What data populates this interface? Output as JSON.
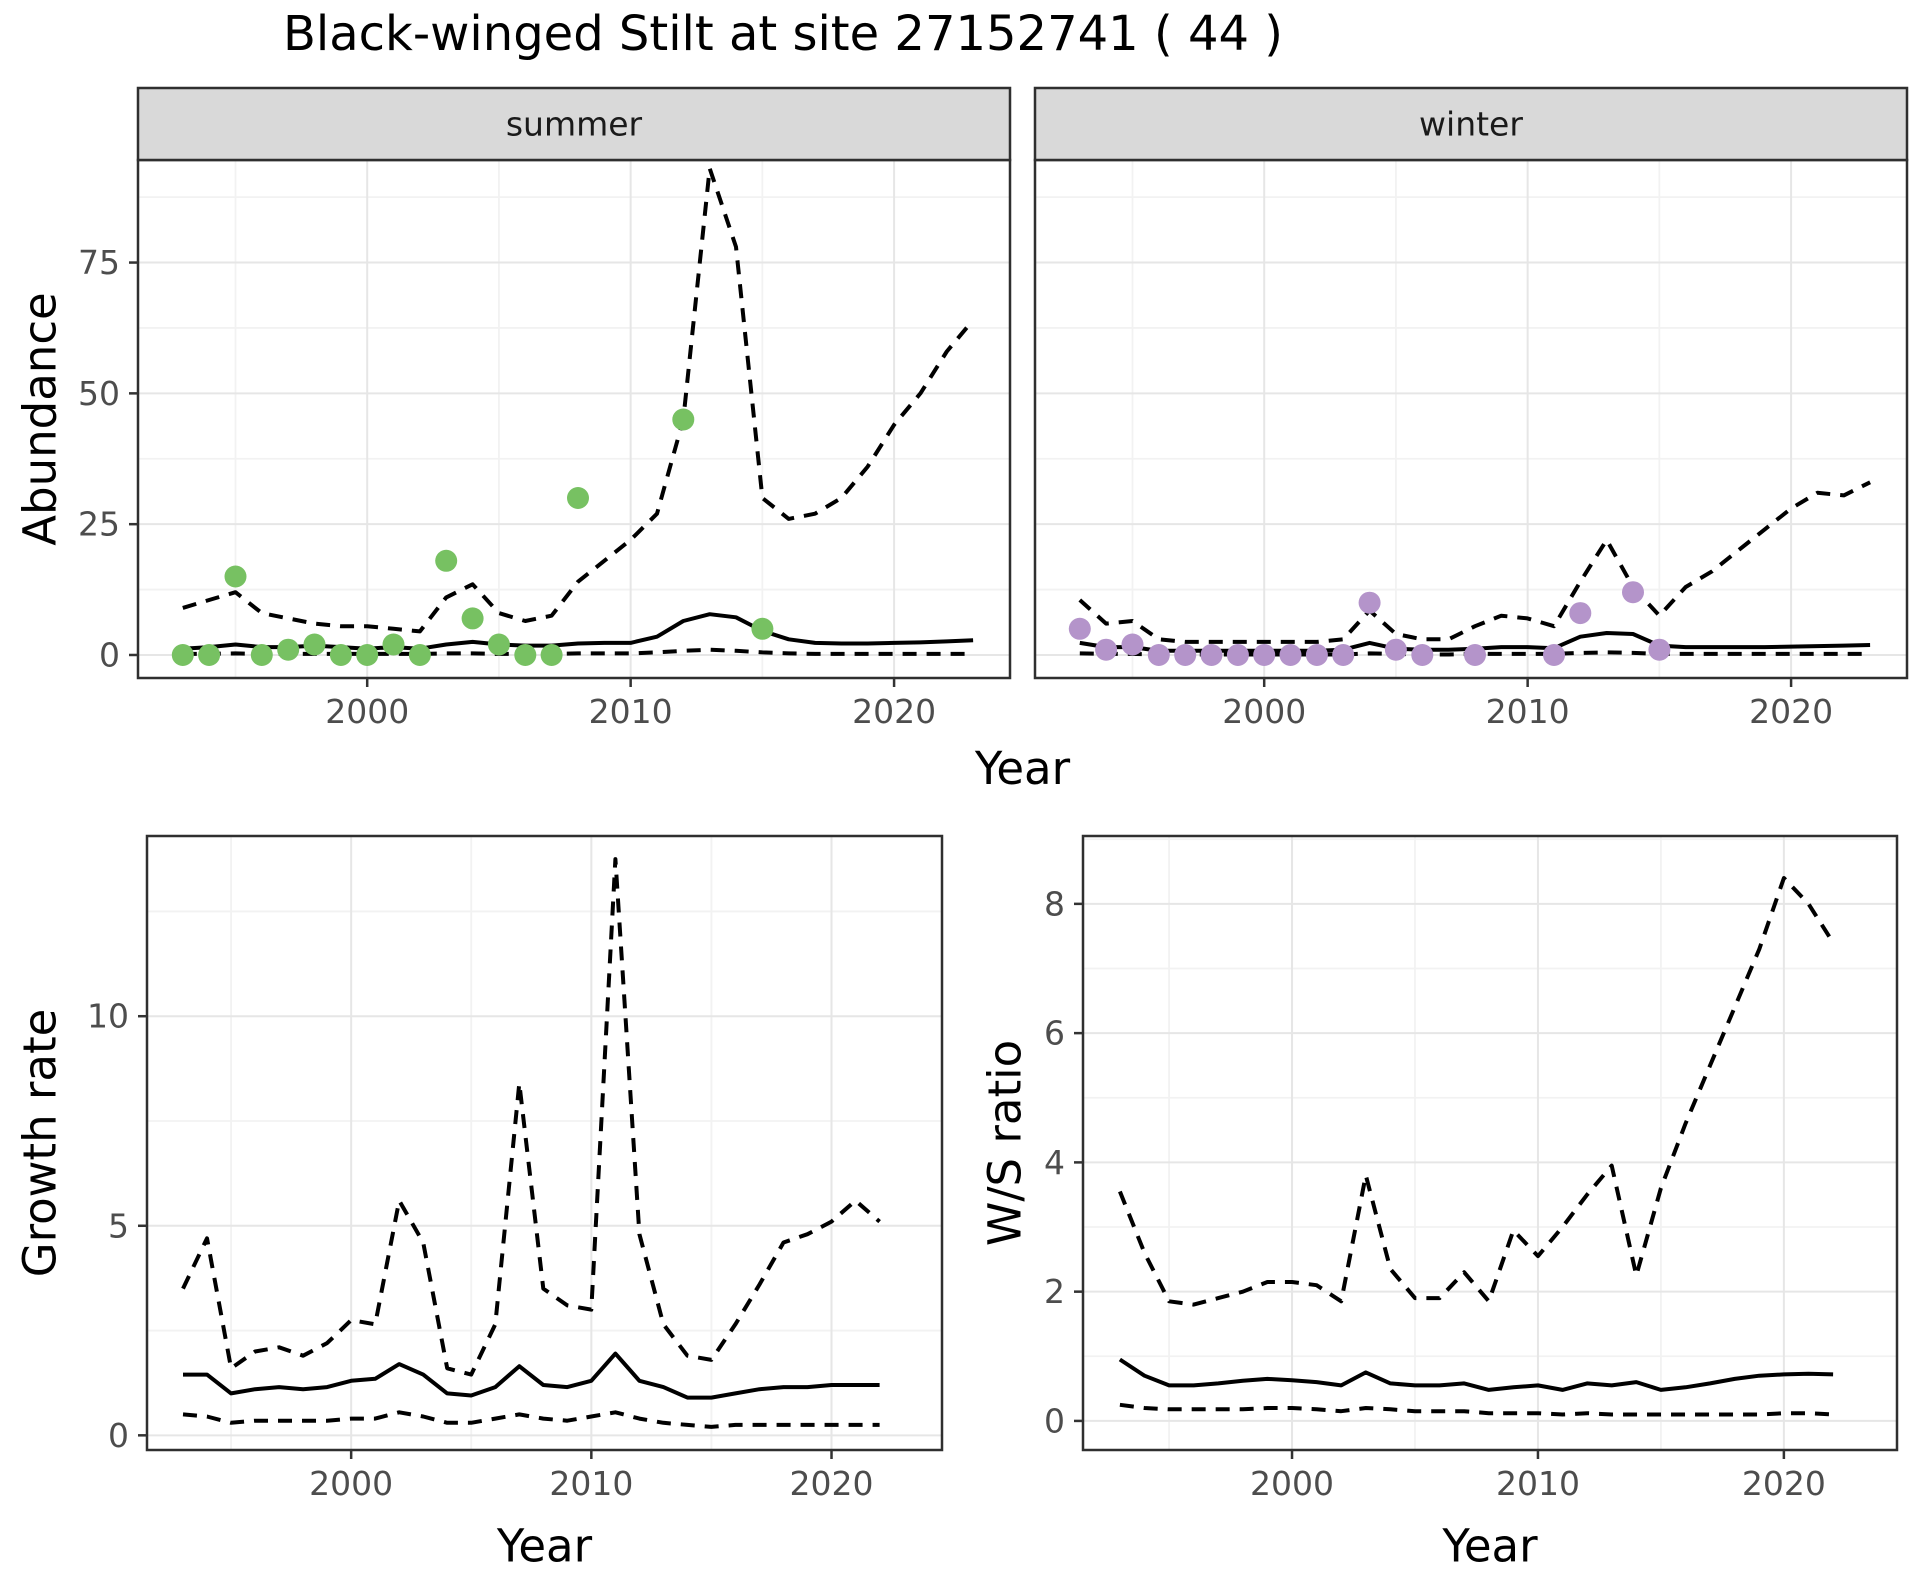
{
  "page": {
    "title": "Black-winged Stilt at site 27152741 ( 44 )",
    "shared_xlabel": "Year"
  },
  "colors": {
    "summer_points": "#77c162",
    "winter_points": "#b494ca",
    "line": "#000000",
    "strip_background": "#d9d9d9"
  },
  "chart_data": [
    {
      "id": "abundance-summer",
      "type": "line",
      "facet": "summer",
      "title": "",
      "ylabel": "Abundance",
      "xlabel": "",
      "xlim": [
        1991.3,
        2024.4
      ],
      "ylim": [
        -4.4,
        94.6
      ],
      "xticks": [
        2000,
        2010,
        2020
      ],
      "xminor": [
        1995,
        2005,
        2015
      ],
      "yticks": [
        0,
        25,
        50,
        75
      ],
      "yminor": [
        12.5,
        37.5,
        62.5,
        87.5
      ],
      "x": [
        1993,
        1994,
        1995,
        1996,
        1997,
        1998,
        1999,
        2000,
        2001,
        2002,
        2003,
        2004,
        2005,
        2006,
        2007,
        2008,
        2009,
        2010,
        2011,
        2012,
        2013,
        2014,
        2015,
        2016,
        2017,
        2018,
        2019,
        2020,
        2021,
        2022,
        2023
      ],
      "series": [
        {
          "name": "upper_ci",
          "style": "dashed",
          "values": [
            9,
            10.5,
            12,
            8,
            7,
            6,
            5.5,
            5.5,
            5,
            4.5,
            11,
            13.5,
            8,
            6.5,
            7.5,
            14,
            18,
            22,
            27,
            45,
            93,
            78,
            30,
            26,
            27,
            30,
            36,
            44,
            50,
            58,
            64
          ]
        },
        {
          "name": "median",
          "style": "solid",
          "values": [
            1.2,
            1.5,
            2,
            1.5,
            1.5,
            1.8,
            1.5,
            1.2,
            1.5,
            1.2,
            2,
            2.5,
            2,
            1.8,
            1.8,
            2.2,
            2.3,
            2.3,
            3.5,
            6.5,
            7.8,
            7.2,
            4.6,
            3,
            2.3,
            2.2,
            2.2,
            2.3,
            2.4,
            2.6,
            2.8
          ]
        },
        {
          "name": "lower_ci",
          "style": "dashed",
          "values": [
            0.2,
            0.2,
            0.3,
            0.2,
            0.2,
            0.2,
            0.2,
            0.2,
            0.2,
            0.2,
            0.3,
            0.3,
            0.2,
            0.2,
            0.2,
            0.3,
            0.3,
            0.3,
            0.5,
            0.8,
            1,
            0.8,
            0.5,
            0.3,
            0.2,
            0.2,
            0.2,
            0.2,
            0.2,
            0.2,
            0.2
          ]
        }
      ],
      "points": {
        "color": "#77c162",
        "data": [
          [
            1993,
            0
          ],
          [
            1994,
            0
          ],
          [
            1995,
            15
          ],
          [
            1996,
            0
          ],
          [
            1997,
            1
          ],
          [
            1998,
            2
          ],
          [
            1999,
            0
          ],
          [
            2000,
            0
          ],
          [
            2001,
            2
          ],
          [
            2002,
            0
          ],
          [
            2003,
            18
          ],
          [
            2004,
            7
          ],
          [
            2005,
            2
          ],
          [
            2006,
            0
          ],
          [
            2007,
            0
          ],
          [
            2008,
            30
          ],
          [
            2012,
            45
          ],
          [
            2015,
            5
          ]
        ]
      }
    },
    {
      "id": "abundance-winter",
      "type": "line",
      "facet": "winter",
      "title": "",
      "ylabel": "",
      "xlabel": "",
      "xlim": [
        1991.3,
        2024.4
      ],
      "ylim": [
        -4.4,
        94.6
      ],
      "xticks": [
        2000,
        2010,
        2020
      ],
      "xminor": [
        1995,
        2005,
        2015
      ],
      "yticks": [
        0,
        25,
        50,
        75
      ],
      "yminor": [
        12.5,
        37.5,
        62.5,
        87.5
      ],
      "x": [
        1993,
        1994,
        1995,
        1996,
        1997,
        1998,
        1999,
        2000,
        2001,
        2002,
        2003,
        2004,
        2005,
        2006,
        2007,
        2008,
        2009,
        2010,
        2011,
        2012,
        2013,
        2014,
        2015,
        2016,
        2017,
        2018,
        2019,
        2020,
        2021,
        2022,
        2023
      ],
      "series": [
        {
          "name": "upper_ci",
          "style": "dashed",
          "values": [
            10.5,
            6,
            6.5,
            3,
            2.5,
            2.5,
            2.5,
            2.5,
            2.5,
            2.5,
            3,
            8.5,
            4,
            3,
            3,
            5.5,
            7.5,
            7,
            5.5,
            14,
            22,
            13,
            7.5,
            13,
            16,
            20,
            24,
            28,
            31,
            30.5,
            33
          ]
        },
        {
          "name": "median",
          "style": "solid",
          "values": [
            2.3,
            1.5,
            1.5,
            0.8,
            0.8,
            0.8,
            0.8,
            0.8,
            0.8,
            0.8,
            1,
            2.3,
            1.2,
            1,
            1,
            1.2,
            1.5,
            1.5,
            1.3,
            3.5,
            4.2,
            4,
            1.8,
            1.5,
            1.5,
            1.5,
            1.5,
            1.6,
            1.7,
            1.8,
            1.9
          ]
        },
        {
          "name": "lower_ci",
          "style": "dashed",
          "values": [
            0.3,
            0.2,
            0.2,
            0.1,
            0.1,
            0.1,
            0.1,
            0.1,
            0.1,
            0.1,
            0.1,
            0.3,
            0.2,
            0.1,
            0.1,
            0.2,
            0.2,
            0.2,
            0.2,
            0.4,
            0.5,
            0.4,
            0.2,
            0.2,
            0.2,
            0.2,
            0.2,
            0.2,
            0.2,
            0.2,
            0.2
          ]
        }
      ],
      "points": {
        "color": "#b494ca",
        "data": [
          [
            1993,
            5
          ],
          [
            1994,
            1
          ],
          [
            1995,
            2
          ],
          [
            1996,
            0
          ],
          [
            1997,
            0
          ],
          [
            1998,
            0
          ],
          [
            1999,
            0
          ],
          [
            2000,
            0
          ],
          [
            2001,
            0
          ],
          [
            2002,
            0
          ],
          [
            2003,
            0
          ],
          [
            2004,
            10
          ],
          [
            2005,
            1
          ],
          [
            2006,
            0
          ],
          [
            2008,
            0
          ],
          [
            2011,
            0
          ],
          [
            2012,
            8
          ],
          [
            2014,
            12
          ],
          [
            2015,
            1
          ]
        ]
      }
    },
    {
      "id": "growth-rate",
      "type": "line",
      "facet": "",
      "title": "",
      "ylabel": "Growth rate",
      "xlabel": "Year",
      "xlim": [
        1991.5,
        2024.6
      ],
      "ylim": [
        -0.35,
        14.3
      ],
      "xticks": [
        2000,
        2010,
        2020
      ],
      "xminor": [
        1995,
        2005,
        2015
      ],
      "yticks": [
        0,
        5,
        10
      ],
      "yminor": [
        2.5,
        7.5,
        12.5
      ],
      "x": [
        1993,
        1994,
        1995,
        1996,
        1997,
        1998,
        1999,
        2000,
        2001,
        2002,
        2003,
        2004,
        2005,
        2006,
        2007,
        2008,
        2009,
        2010,
        2011,
        2012,
        2013,
        2014,
        2015,
        2016,
        2017,
        2018,
        2019,
        2020,
        2021,
        2022
      ],
      "series": [
        {
          "name": "upper_ci",
          "style": "dashed",
          "values": [
            3.5,
            4.7,
            1.6,
            2.0,
            2.1,
            1.9,
            2.2,
            2.75,
            2.65,
            5.6,
            4.6,
            1.6,
            1.45,
            2.65,
            8.4,
            3.5,
            3.1,
            3.0,
            13.75,
            4.8,
            2.65,
            1.9,
            1.8,
            2.65,
            3.6,
            4.6,
            4.8,
            5.1,
            5.6,
            5.1
          ]
        },
        {
          "name": "median",
          "style": "solid",
          "values": [
            1.45,
            1.45,
            1.0,
            1.1,
            1.15,
            1.1,
            1.15,
            1.3,
            1.35,
            1.7,
            1.45,
            1.0,
            0.95,
            1.15,
            1.65,
            1.2,
            1.15,
            1.3,
            1.95,
            1.3,
            1.15,
            0.9,
            0.9,
            1.0,
            1.1,
            1.15,
            1.15,
            1.2,
            1.2,
            1.2
          ]
        },
        {
          "name": "lower_ci",
          "style": "dashed",
          "values": [
            0.5,
            0.45,
            0.3,
            0.35,
            0.35,
            0.35,
            0.35,
            0.4,
            0.4,
            0.55,
            0.45,
            0.3,
            0.3,
            0.4,
            0.5,
            0.4,
            0.35,
            0.45,
            0.55,
            0.4,
            0.3,
            0.25,
            0.2,
            0.25,
            0.25,
            0.25,
            0.25,
            0.25,
            0.25,
            0.25
          ]
        }
      ],
      "points": {
        "color": "#000000",
        "data": []
      }
    },
    {
      "id": "ws-ratio",
      "type": "line",
      "facet": "",
      "title": "",
      "ylabel": "W/S ratio",
      "xlabel": "Year",
      "xlim": [
        1991.5,
        2024.6
      ],
      "ylim": [
        -0.45,
        9.05
      ],
      "xticks": [
        2000,
        2010,
        2020
      ],
      "xminor": [
        1995,
        2005,
        2015
      ],
      "yticks": [
        0,
        2,
        4,
        6,
        8
      ],
      "yminor": [
        1,
        3,
        5,
        7,
        9
      ],
      "x": [
        1993,
        1994,
        1995,
        1996,
        1997,
        1998,
        1999,
        2000,
        2001,
        2002,
        2003,
        2004,
        2005,
        2006,
        2007,
        2008,
        2009,
        2010,
        2011,
        2012,
        2013,
        2014,
        2015,
        2016,
        2017,
        2018,
        2019,
        2020,
        2021,
        2022
      ],
      "series": [
        {
          "name": "upper_ci",
          "style": "dashed",
          "values": [
            3.55,
            2.6,
            1.85,
            1.8,
            1.9,
            2.0,
            2.15,
            2.15,
            2.1,
            1.85,
            3.8,
            2.35,
            1.9,
            1.9,
            2.3,
            1.85,
            2.95,
            2.55,
            3.0,
            3.5,
            3.95,
            2.25,
            3.6,
            4.6,
            5.5,
            6.4,
            7.3,
            8.4,
            8.0,
            7.4
          ]
        },
        {
          "name": "median",
          "style": "solid",
          "values": [
            0.95,
            0.7,
            0.55,
            0.55,
            0.58,
            0.62,
            0.65,
            0.63,
            0.6,
            0.55,
            0.75,
            0.58,
            0.55,
            0.55,
            0.58,
            0.48,
            0.52,
            0.55,
            0.48,
            0.58,
            0.55,
            0.6,
            0.48,
            0.52,
            0.58,
            0.65,
            0.7,
            0.72,
            0.73,
            0.72
          ]
        },
        {
          "name": "lower_ci",
          "style": "dashed",
          "values": [
            0.25,
            0.2,
            0.18,
            0.18,
            0.18,
            0.18,
            0.2,
            0.2,
            0.18,
            0.15,
            0.2,
            0.18,
            0.15,
            0.15,
            0.15,
            0.12,
            0.12,
            0.12,
            0.1,
            0.12,
            0.1,
            0.1,
            0.1,
            0.1,
            0.1,
            0.1,
            0.1,
            0.12,
            0.12,
            0.1
          ]
        }
      ],
      "points": {
        "color": "#000000",
        "data": []
      }
    }
  ]
}
